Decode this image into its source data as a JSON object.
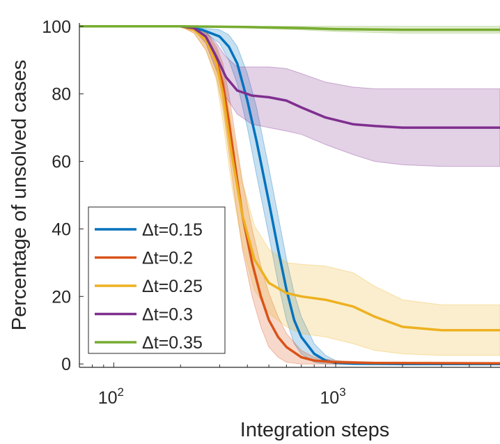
{
  "chart_data": {
    "type": "line",
    "title": "",
    "xlabel": "Integration steps",
    "ylabel": "Percentage of unsolved cases",
    "xscale": "log",
    "xlim": [
      70,
      5500
    ],
    "ylim": [
      -1,
      101
    ],
    "yticks": [
      0,
      20,
      40,
      60,
      80,
      100
    ],
    "ytick_labels": [
      "0",
      "20",
      "40",
      "60",
      "80",
      "100"
    ],
    "xticks": [
      {
        "value": 100,
        "base": "10",
        "exp": "2"
      },
      {
        "value": 1000,
        "base": "10",
        "exp": "3"
      }
    ],
    "legend_position": "bottom-left",
    "series": [
      {
        "name": "Δt=0.15",
        "color": "#0072BD",
        "x": [
          70,
          200,
          250,
          300,
          330,
          360,
          400,
          440,
          500,
          550,
          600,
          650,
          700,
          800,
          900,
          1000,
          1200,
          2000,
          5500
        ],
        "y": [
          100,
          100,
          99,
          97,
          94,
          89,
          78,
          66,
          48,
          34,
          22,
          13,
          8,
          3,
          1,
          0.3,
          0.1,
          0,
          0
        ],
        "lower": [
          100,
          100,
          98.5,
          95,
          90,
          83,
          70,
          56,
          38,
          24,
          13,
          6,
          3,
          0.5,
          0,
          0,
          0,
          0,
          0
        ],
        "upper": [
          100,
          100,
          99.5,
          99,
          97.5,
          94,
          86,
          76,
          58,
          44,
          31,
          21,
          14,
          6,
          2.5,
          1,
          0.3,
          0,
          0
        ]
      },
      {
        "name": "Δt=0.2",
        "color": "#D95319",
        "x": [
          70,
          200,
          230,
          260,
          290,
          310,
          330,
          350,
          380,
          420,
          460,
          500,
          550,
          600,
          700,
          800,
          1000,
          1500,
          5500
        ],
        "y": [
          100,
          100,
          99,
          96,
          90,
          83,
          72,
          60,
          44,
          30,
          20,
          13,
          8,
          5,
          2,
          1,
          0.5,
          0.3,
          0.2
        ],
        "lower": [
          100,
          100,
          98,
          93,
          85,
          76,
          63,
          50,
          34,
          20,
          11,
          5,
          2,
          0.5,
          0,
          0,
          0,
          0,
          0
        ],
        "upper": [
          100,
          100,
          99.5,
          98.5,
          94,
          89,
          80,
          69,
          54,
          40,
          29,
          21,
          14,
          9,
          4,
          2,
          1,
          0.5,
          0.3
        ]
      },
      {
        "name": "Δt=0.25",
        "color": "#EDB120",
        "x": [
          70,
          200,
          230,
          260,
          290,
          310,
          340,
          380,
          430,
          500,
          600,
          700,
          900,
          1200,
          1500,
          2000,
          3000,
          5500
        ],
        "y": [
          100,
          100,
          99,
          96,
          89,
          80,
          62,
          44,
          31,
          24,
          21,
          20,
          19,
          17,
          14,
          11,
          10,
          10
        ],
        "lower": [
          100,
          100,
          98,
          93,
          84,
          72,
          53,
          35,
          22,
          15,
          11,
          9,
          8,
          6,
          4,
          3,
          2.5,
          2.5
        ],
        "upper": [
          100,
          100,
          99.5,
          98.5,
          93,
          87,
          71,
          54,
          41,
          34,
          30,
          29.5,
          29,
          27,
          23,
          19,
          17.5,
          17.5
        ]
      },
      {
        "name": "Δt=0.3",
        "color": "#7E2F8E",
        "x": [
          70,
          200,
          230,
          260,
          290,
          320,
          360,
          420,
          500,
          600,
          700,
          900,
          1200,
          1500,
          2000,
          3000,
          5500
        ],
        "y": [
          100,
          100,
          99.5,
          97,
          91,
          85,
          81,
          79.5,
          79,
          78,
          76,
          73,
          71,
          70.5,
          70,
          70,
          70
        ],
        "lower": [
          100,
          100,
          99,
          95,
          87,
          79,
          74,
          71,
          70,
          69,
          68,
          65,
          62,
          60,
          59,
          58.5,
          58.5
        ],
        "upper": [
          100,
          100,
          100,
          98.5,
          95,
          91,
          88,
          88,
          88,
          87.5,
          86,
          83.5,
          82,
          81.5,
          81.5,
          81.5,
          81.5
        ]
      },
      {
        "name": "Δt=0.35",
        "color": "#77AC30",
        "x": [
          70,
          200,
          400,
          700,
          1000,
          2000,
          5500
        ],
        "y": [
          100,
          100,
          99.8,
          99.5,
          99.2,
          99,
          99
        ],
        "lower": [
          100,
          100,
          99.5,
          99,
          98.5,
          98,
          98
        ],
        "upper": [
          100,
          100,
          100,
          100,
          100,
          100,
          100
        ]
      }
    ]
  }
}
